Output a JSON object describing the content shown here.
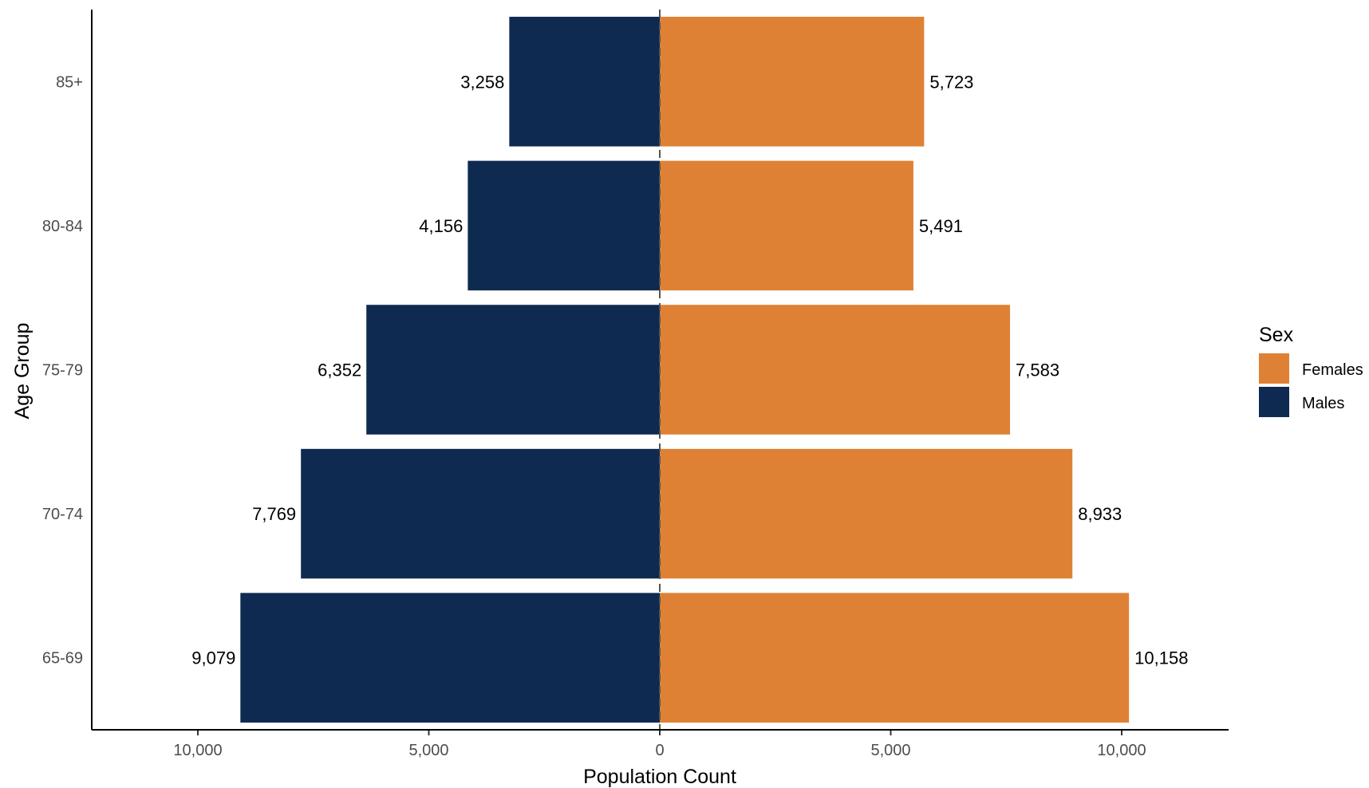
{
  "chart_data": {
    "type": "bar",
    "orientation": "horizontal",
    "layout": "population-pyramid",
    "categories": [
      "65-69",
      "70-74",
      "75-79",
      "80-84",
      "85+"
    ],
    "series": [
      {
        "name": "Males",
        "values": [
          9079,
          7769,
          6352,
          4156,
          3258
        ],
        "color": "#0e2a50",
        "side": "left"
      },
      {
        "name": "Females",
        "values": [
          10158,
          8933,
          7583,
          5491,
          5723
        ],
        "color": "#de8135",
        "side": "right"
      }
    ],
    "data_labels": {
      "Males": [
        "9,079",
        "7,769",
        "6,352",
        "4,156",
        "3,258"
      ],
      "Females": [
        "10,158",
        "8,933",
        "7,583",
        "5,491",
        "5,723"
      ]
    },
    "xlabel": "Population Count",
    "ylabel": "Age Group",
    "xlim": [
      -12000,
      12000
    ],
    "x_ticks": [
      -10000,
      -5000,
      0,
      5000,
      10000
    ],
    "x_tick_labels": [
      "10,000",
      "5,000",
      "0",
      "5,000",
      "10,000"
    ],
    "zero_line": "dashed",
    "grid": false,
    "legend": {
      "title": "Sex",
      "position": "right",
      "entries": [
        {
          "label": "Females",
          "color": "#de8135"
        },
        {
          "label": "Males",
          "color": "#0e2a50"
        }
      ]
    }
  }
}
